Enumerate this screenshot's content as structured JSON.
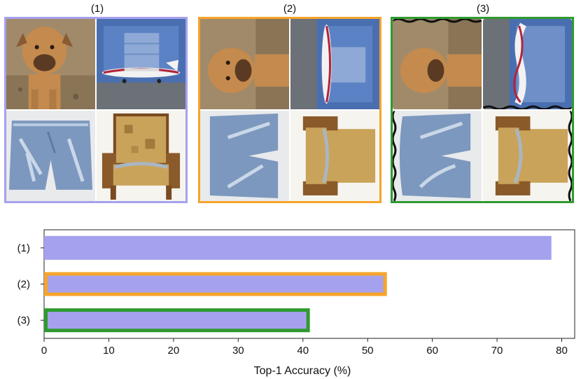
{
  "panels": [
    {
      "label": "(1)",
      "border_color": "#a6a1ee",
      "tiles": [
        "dog",
        "airplane",
        "denim-shorts",
        "armchair"
      ]
    },
    {
      "label": "(2)",
      "border_color": "#f5a42b",
      "tiles": [
        "dog-rotated",
        "airplane-rotated",
        "denim-shorts-rotated",
        "armchair-rotated"
      ]
    },
    {
      "label": "(3)",
      "border_color": "#2f9a2f",
      "tiles": [
        "dog-rotated-warped",
        "airplane-rotated-warped",
        "denim-shorts-rotated-warped",
        "armchair-rotated-warped"
      ]
    }
  ],
  "chart_data": {
    "type": "bar",
    "orientation": "horizontal",
    "categories": [
      "(1)",
      "(2)",
      "(3)"
    ],
    "values": [
      78.4,
      52.7,
      40.8
    ],
    "bar_fill": "#a6a1ee",
    "bar_outline": [
      "",
      "#f5a42b",
      "#2f9a2f"
    ],
    "xlabel": "Top-1 Accuracy (%)",
    "ylabel": "",
    "xlim": [
      0,
      82
    ],
    "xticks": [
      0,
      10,
      20,
      30,
      40,
      50,
      60,
      70,
      80
    ],
    "grid": false
  }
}
